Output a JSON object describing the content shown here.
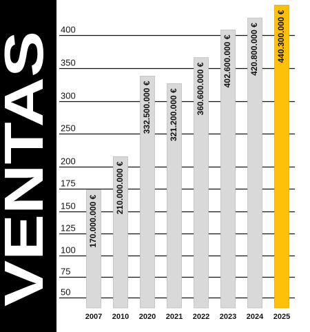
{
  "side_title": "VENTAS",
  "colors": {
    "side_panel": "#000000",
    "side_title": "#ffffff",
    "bar_default": "#d9d9d9",
    "bar_highlight": "#ffc107",
    "gridline": "#111111"
  },
  "chart_data": {
    "type": "bar",
    "title": "",
    "xlabel": "",
    "ylabel": "",
    "categories": [
      "2007",
      "2010",
      "2020",
      "2021",
      "2022",
      "2023",
      "2024",
      "2025"
    ],
    "values": [
      170000000,
      210000000,
      332500000,
      321200000,
      360600000,
      402600000,
      420800000,
      440300000
    ],
    "value_labels": [
      "170.000.000 €",
      "210.000.000 €",
      "332.500.000 €",
      "321.200.000 €",
      "360.600.000 €",
      "402.600.000 €",
      "420.800.000 €",
      "440.300.000 €"
    ],
    "highlight_category": "2025",
    "y_axis_unit_divisor": 1000000,
    "y_ticks": [
      50,
      75,
      100,
      125,
      150,
      175,
      200,
      250,
      300,
      350,
      400
    ],
    "y_tick_labels": [
      "50",
      "75",
      "100",
      "125",
      "150",
      "175",
      "200",
      "250",
      "300",
      "350",
      "400"
    ],
    "grid": true,
    "legend": "none"
  }
}
